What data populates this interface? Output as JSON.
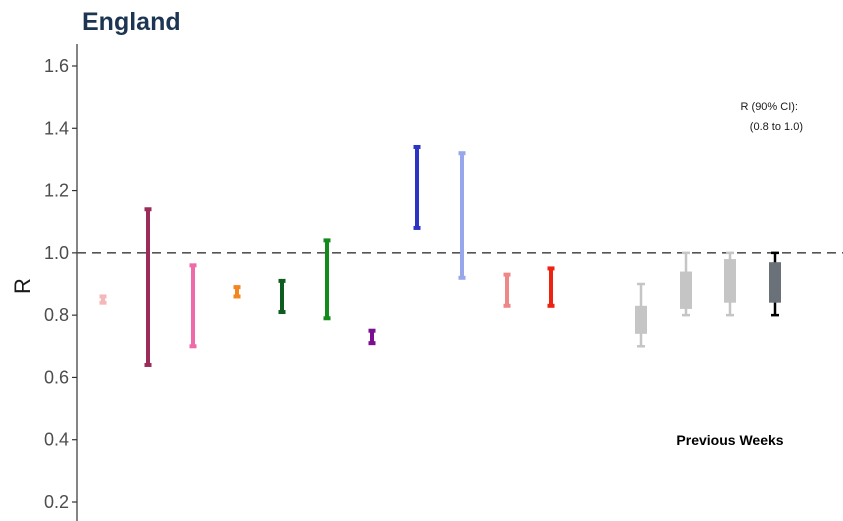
{
  "chart_data": {
    "type": "errorbar",
    "title": "England",
    "ylabel": "R",
    "ylim": [
      0.15,
      1.67
    ],
    "yticks": [
      "0.2",
      "0.4",
      "0.6",
      "0.8",
      "1.0",
      "1.2",
      "1.4",
      "1.6"
    ],
    "reference_line": 1.0,
    "grid": false,
    "annotation_lines": [
      "R (90% CI):",
      "(0.8 to 1.0)"
    ],
    "group_label": "Previous Weeks",
    "intervals": [
      {
        "low": 0.84,
        "high": 0.86,
        "color": "#f4b8b8",
        "style": "bar"
      },
      {
        "low": 0.64,
        "high": 1.14,
        "color": "#9b2c5a",
        "style": "bar"
      },
      {
        "low": 0.7,
        "high": 0.96,
        "color": "#ee6aa8",
        "style": "bar"
      },
      {
        "low": 0.86,
        "high": 0.89,
        "color": "#f3861f",
        "style": "bar"
      },
      {
        "low": 0.81,
        "high": 0.91,
        "color": "#0f5c20",
        "style": "bar"
      },
      {
        "low": 0.79,
        "high": 1.04,
        "color": "#138a1c",
        "style": "bar"
      },
      {
        "low": 0.71,
        "high": 0.75,
        "color": "#7a0f8f",
        "style": "bar"
      },
      {
        "low": 1.08,
        "high": 1.34,
        "color": "#2c34c4",
        "style": "bar"
      },
      {
        "low": 0.92,
        "high": 1.32,
        "color": "#98a6ec",
        "style": "bar"
      },
      {
        "low": 0.83,
        "high": 0.93,
        "color": "#ee8888",
        "style": "bar"
      },
      {
        "low": 0.83,
        "high": 0.95,
        "color": "#ee2211",
        "style": "bar"
      },
      {
        "low": 0.7,
        "high": 0.9,
        "inner_low": 0.74,
        "inner_high": 0.83,
        "color": "#c5c5c5",
        "style": "box"
      },
      {
        "low": 0.8,
        "high": 1.0,
        "inner_low": 0.82,
        "inner_high": 0.94,
        "color": "#c5c5c5",
        "style": "box"
      },
      {
        "low": 0.8,
        "high": 1.0,
        "inner_low": 0.84,
        "inner_high": 0.98,
        "color": "#c5c5c5",
        "style": "box"
      },
      {
        "low": 0.8,
        "high": 1.0,
        "inner_low": 0.84,
        "inner_high": 0.97,
        "color": "#6b7178",
        "whisker_color": "#000000",
        "style": "box"
      }
    ]
  }
}
